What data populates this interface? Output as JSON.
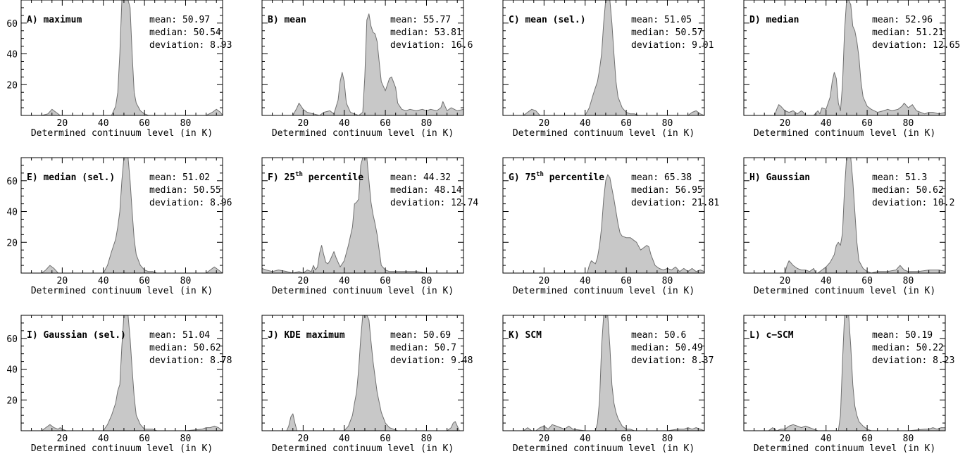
{
  "chart_data": [
    {
      "type": "area",
      "label": "A) maximum",
      "stats": [
        "mean: 50.97",
        "median: 50.54",
        "deviation: 8.93"
      ],
      "xlabel": "Determined continuum level (in K)",
      "xlim": [
        0,
        98
      ],
      "ylim": [
        0,
        75
      ],
      "xticks": [
        "20",
        "40",
        "60",
        "80"
      ],
      "yticks": [
        "20",
        "40",
        "60"
      ],
      "show_yticks": true,
      "x": [
        0,
        10,
        13,
        15,
        17,
        19,
        30,
        44,
        46,
        47,
        48,
        49,
        50,
        51,
        52,
        53,
        54,
        55,
        56,
        58,
        60,
        62,
        70,
        90,
        93,
        95,
        97,
        98
      ],
      "values": [
        0,
        0,
        1,
        4,
        2,
        0,
        0,
        0,
        6,
        15,
        40,
        78,
        78,
        78,
        78,
        70,
        40,
        15,
        8,
        3,
        1,
        0,
        0,
        0,
        2,
        4,
        2,
        0
      ]
    },
    {
      "type": "area",
      "label": "B) mean",
      "stats": [
        "mean: 55.77",
        "median: 53.81",
        "deviation: 16.6"
      ],
      "xlabel": "Determined continuum level (in K)",
      "xlim": [
        0,
        98
      ],
      "ylim": [
        0,
        75
      ],
      "xticks": [
        "20",
        "40",
        "60",
        "80"
      ],
      "yticks": [
        "20",
        "40",
        "60"
      ],
      "show_yticks": false,
      "x": [
        0,
        15,
        17,
        18,
        20,
        22,
        25,
        28,
        30,
        33,
        35,
        37,
        38,
        39,
        40,
        41,
        43,
        45,
        47,
        49,
        50,
        51,
        52,
        53,
        54,
        55,
        56,
        57,
        58,
        60,
        61,
        62,
        63,
        65,
        66,
        68,
        70,
        72,
        75,
        78,
        80,
        82,
        85,
        87,
        88,
        90,
        92,
        95,
        98
      ],
      "values": [
        0,
        0,
        5,
        8,
        4,
        2,
        1,
        0,
        2,
        3,
        1,
        10,
        22,
        28,
        22,
        8,
        2,
        1,
        0,
        2,
        25,
        62,
        66,
        58,
        54,
        53,
        48,
        35,
        22,
        16,
        20,
        24,
        25,
        18,
        8,
        4,
        3,
        4,
        3,
        4,
        3,
        4,
        3,
        5,
        9,
        3,
        5,
        3,
        4
      ]
    },
    {
      "type": "area",
      "label": "C) mean (sel.)",
      "stats": [
        "mean: 51.05",
        "median: 50.57",
        "deviation: 9.01"
      ],
      "xlabel": "Determined continuum level (in K)",
      "xlim": [
        0,
        98
      ],
      "ylim": [
        0,
        75
      ],
      "xticks": [
        "20",
        "40",
        "60",
        "80"
      ],
      "yticks": [
        "20",
        "40",
        "60"
      ],
      "show_yticks": false,
      "x": [
        0,
        10,
        12,
        14,
        16,
        18,
        40,
        42,
        44,
        46,
        47,
        48,
        49,
        50,
        51,
        52,
        53,
        54,
        55,
        56,
        58,
        60,
        62,
        64,
        66,
        80,
        90,
        92,
        94,
        96,
        98
      ],
      "values": [
        0,
        0,
        2,
        4,
        3,
        0,
        0,
        5,
        14,
        22,
        30,
        40,
        60,
        78,
        78,
        78,
        60,
        40,
        22,
        12,
        5,
        2,
        1,
        1,
        0,
        0,
        0,
        2,
        3,
        1,
        0
      ]
    },
    {
      "type": "area",
      "label": "D) median",
      "stats": [
        "mean: 52.96",
        "median: 51.21",
        "deviation: 12.65"
      ],
      "xlabel": "Determined continuum level (in K)",
      "xlim": [
        0,
        98
      ],
      "ylim": [
        0,
        75
      ],
      "xticks": [
        "20",
        "40",
        "60",
        "80"
      ],
      "yticks": [
        "20",
        "40",
        "60"
      ],
      "show_yticks": false,
      "x": [
        0,
        15,
        16,
        17,
        18,
        20,
        22,
        24,
        26,
        28,
        29,
        30,
        32,
        34,
        36,
        37,
        38,
        40,
        42,
        43,
        44,
        45,
        46,
        47,
        48,
        49,
        50,
        51,
        52,
        53,
        54,
        55,
        56,
        57,
        58,
        60,
        62,
        65,
        68,
        70,
        72,
        75,
        77,
        78,
        80,
        82,
        84,
        86,
        88,
        90,
        92,
        95,
        98
      ],
      "values": [
        0,
        0,
        4,
        7,
        6,
        3,
        2,
        3,
        1,
        3,
        2,
        0,
        0,
        0,
        3,
        1,
        5,
        4,
        12,
        22,
        28,
        24,
        8,
        3,
        20,
        55,
        78,
        78,
        72,
        58,
        55,
        48,
        38,
        22,
        12,
        6,
        4,
        2,
        3,
        4,
        3,
        4,
        6,
        8,
        5,
        7,
        3,
        2,
        1,
        2,
        2,
        1,
        2
      ]
    },
    {
      "type": "area",
      "label": "E) median (sel.)",
      "stats": [
        "mean: 51.02",
        "median: 50.55",
        "deviation: 8.96"
      ],
      "xlabel": "Determined continuum level (in K)",
      "xlim": [
        0,
        98
      ],
      "ylim": [
        0,
        75
      ],
      "xticks": [
        "20",
        "40",
        "60",
        "80"
      ],
      "yticks": [
        "20",
        "40",
        "60"
      ],
      "show_yticks": true,
      "x": [
        0,
        10,
        12,
        14,
        16,
        18,
        40,
        42,
        44,
        46,
        47,
        48,
        49,
        50,
        51,
        52,
        53,
        54,
        55,
        56,
        58,
        60,
        62,
        64,
        66,
        80,
        90,
        92,
        94,
        96,
        98
      ],
      "values": [
        0,
        0,
        2,
        5,
        3,
        0,
        0,
        5,
        14,
        22,
        30,
        40,
        60,
        78,
        78,
        78,
        60,
        40,
        22,
        12,
        5,
        2,
        1,
        1,
        0,
        0,
        0,
        2,
        4,
        2,
        0
      ]
    },
    {
      "type": "area",
      "label": "F) 25th percentile",
      "label_main": "F) 25",
      "label_sup": "th",
      "label_rest": " percentile",
      "stats": [
        "mean: 44.32",
        "median: 48.14",
        "deviation: 12.74"
      ],
      "xlabel": "Determined continuum level (in K)",
      "xlim": [
        0,
        98
      ],
      "ylim": [
        0,
        75
      ],
      "xticks": [
        "20",
        "40",
        "60",
        "80"
      ],
      "yticks": [
        "20",
        "40",
        "60"
      ],
      "show_yticks": false,
      "x": [
        0,
        2,
        5,
        8,
        12,
        15,
        18,
        20,
        22,
        24,
        25,
        26,
        27,
        28,
        29,
        30,
        31,
        32,
        33,
        35,
        36,
        38,
        40,
        42,
        44,
        45,
        46,
        47,
        48,
        49,
        50,
        51,
        52,
        53,
        54,
        55,
        56,
        57,
        58,
        60,
        62,
        65,
        70,
        75,
        80
      ],
      "values": [
        3,
        2,
        1,
        2,
        1,
        0,
        1,
        0,
        2,
        1,
        5,
        2,
        4,
        13,
        18,
        12,
        7,
        6,
        8,
        14,
        10,
        4,
        8,
        18,
        30,
        45,
        46,
        48,
        70,
        78,
        78,
        76,
        60,
        46,
        38,
        32,
        25,
        15,
        5,
        2,
        1,
        1,
        1,
        1,
        0
      ]
    },
    {
      "type": "area",
      "label": "G) 75th percentile",
      "label_main": "G) 75",
      "label_sup": "th",
      "label_rest": " percentile",
      "stats": [
        "mean: 65.38",
        "median: 56.95",
        "deviation: 21.81"
      ],
      "xlabel": "Determined continuum level (in K)",
      "xlim": [
        0,
        98
      ],
      "ylim": [
        0,
        75
      ],
      "xticks": [
        "20",
        "40",
        "60",
        "80"
      ],
      "yticks": [
        "20",
        "40",
        "60"
      ],
      "show_yticks": false,
      "x": [
        0,
        41,
        42,
        43,
        44,
        45,
        46,
        47,
        48,
        49,
        50,
        51,
        52,
        53,
        54,
        55,
        56,
        57,
        58,
        60,
        62,
        65,
        67,
        68,
        70,
        71,
        72,
        74,
        76,
        78,
        80,
        82,
        84,
        86,
        88,
        90,
        92,
        94,
        96,
        98
      ],
      "values": [
        0,
        0,
        5,
        8,
        7,
        6,
        10,
        18,
        30,
        48,
        60,
        64,
        62,
        55,
        48,
        40,
        32,
        26,
        24,
        23,
        23,
        20,
        15,
        16,
        18,
        17,
        12,
        5,
        3,
        2,
        3,
        2,
        4,
        1,
        3,
        1,
        3,
        1,
        2,
        1
      ]
    },
    {
      "type": "area",
      "label": "H) Gaussian",
      "stats": [
        "mean: 51.3",
        "median: 50.62",
        "deviation: 10.2"
      ],
      "xlabel": "Determined continuum level (in K)",
      "xlim": [
        0,
        98
      ],
      "ylim": [
        0,
        75
      ],
      "xticks": [
        "20",
        "40",
        "60",
        "80"
      ],
      "yticks": [
        "20",
        "40",
        "60"
      ],
      "show_yticks": false,
      "x": [
        0,
        20,
        21,
        22,
        24,
        26,
        28,
        30,
        32,
        34,
        35,
        36,
        38,
        40,
        42,
        44,
        45,
        46,
        47,
        48,
        49,
        50,
        51,
        52,
        53,
        54,
        55,
        56,
        58,
        60,
        62,
        65,
        70,
        74,
        76,
        78,
        80,
        85,
        90,
        95,
        98
      ],
      "values": [
        0,
        0,
        5,
        8,
        5,
        3,
        2,
        2,
        1,
        3,
        0,
        0,
        2,
        4,
        7,
        12,
        18,
        20,
        18,
        26,
        55,
        78,
        78,
        78,
        60,
        40,
        20,
        8,
        3,
        1,
        0,
        1,
        1,
        2,
        5,
        2,
        1,
        1,
        2,
        2,
        1
      ]
    },
    {
      "type": "area",
      "label": "I) Gaussian (sel.)",
      "stats": [
        "mean: 51.04",
        "median: 50.62",
        "deviation: 8.78"
      ],
      "xlabel": "Determined continuum level (in K)",
      "xlim": [
        0,
        98
      ],
      "ylim": [
        0,
        75
      ],
      "xticks": [
        "20",
        "40",
        "60",
        "80"
      ],
      "yticks": [
        "20",
        "40",
        "60"
      ],
      "show_yticks": true,
      "x": [
        0,
        10,
        12,
        14,
        16,
        18,
        19,
        20,
        22,
        40,
        42,
        44,
        46,
        47,
        48,
        49,
        50,
        51,
        52,
        53,
        54,
        55,
        56,
        58,
        60,
        62,
        64,
        66,
        80,
        88,
        90,
        92,
        94,
        96,
        98
      ],
      "values": [
        0,
        0,
        2,
        4,
        2,
        1,
        2,
        1,
        0,
        0,
        4,
        10,
        18,
        26,
        30,
        55,
        78,
        78,
        78,
        60,
        40,
        22,
        10,
        4,
        1,
        1,
        1,
        0,
        0,
        1,
        2,
        2,
        3,
        2,
        0
      ]
    },
    {
      "type": "area",
      "label": "J) KDE maximum",
      "stats": [
        "mean: 50.69",
        "median: 50.7",
        "deviation: 9.48"
      ],
      "xlabel": "Determined continuum level (in K)",
      "xlim": [
        0,
        98
      ],
      "ylim": [
        0,
        75
      ],
      "xticks": [
        "20",
        "40",
        "60",
        "80"
      ],
      "yticks": [
        "20",
        "40",
        "60"
      ],
      "show_yticks": false,
      "x": [
        0,
        12,
        13,
        14,
        15,
        16,
        17,
        30,
        40,
        42,
        44,
        45,
        46,
        47,
        48,
        49,
        50,
        51,
        52,
        53,
        54,
        55,
        56,
        58,
        60,
        62,
        64,
        66,
        80,
        90,
        92,
        93,
        94,
        95,
        96,
        98
      ],
      "values": [
        0,
        0,
        3,
        9,
        11,
        5,
        0,
        0,
        0,
        3,
        10,
        18,
        25,
        40,
        60,
        78,
        78,
        78,
        72,
        58,
        45,
        35,
        25,
        12,
        5,
        2,
        1,
        0,
        0,
        0,
        2,
        5,
        6,
        3,
        0,
        0
      ]
    },
    {
      "type": "area",
      "label": "K) SCM",
      "stats": [
        "mean: 50.6",
        "median: 50.49",
        "deviation: 8.37"
      ],
      "xlabel": "Determined continuum level (in K)",
      "xlim": [
        0,
        98
      ],
      "ylim": [
        0,
        75
      ],
      "xticks": [
        "20",
        "40",
        "60",
        "80"
      ],
      "yticks": [
        "20",
        "40",
        "60"
      ],
      "show_yticks": false,
      "x": [
        0,
        10,
        12,
        14,
        16,
        18,
        20,
        22,
        24,
        26,
        28,
        30,
        32,
        34,
        40,
        45,
        46,
        47,
        48,
        49,
        50,
        51,
        52,
        53,
        54,
        55,
        56,
        58,
        60,
        62,
        64,
        80,
        85,
        88,
        90,
        92,
        94,
        96,
        98
      ],
      "values": [
        0,
        0,
        2,
        0,
        0,
        2,
        3,
        1,
        4,
        3,
        2,
        1,
        3,
        1,
        0,
        0,
        5,
        20,
        55,
        78,
        78,
        78,
        55,
        30,
        18,
        12,
        8,
        3,
        1,
        1,
        0,
        0,
        1,
        1,
        2,
        1,
        2,
        1,
        0
      ]
    },
    {
      "type": "area",
      "label": "L) c−SCM",
      "stats": [
        "mean: 50.19",
        "median: 50.22",
        "deviation: 8.23"
      ],
      "xlabel": "Determined continuum level (in K)",
      "xlim": [
        0,
        98
      ],
      "ylim": [
        0,
        75
      ],
      "xticks": [
        "20",
        "40",
        "60",
        "80"
      ],
      "yticks": [
        "20",
        "40",
        "60"
      ],
      "show_yticks": false,
      "x": [
        0,
        12,
        14,
        16,
        18,
        20,
        22,
        24,
        26,
        28,
        30,
        32,
        34,
        36,
        40,
        46,
        47,
        48,
        49,
        50,
        51,
        52,
        53,
        54,
        55,
        56,
        58,
        60,
        62,
        70,
        80,
        88,
        90,
        92,
        94,
        96,
        98
      ],
      "values": [
        0,
        0,
        2,
        0,
        1,
        1,
        3,
        4,
        3,
        2,
        3,
        2,
        1,
        0,
        0,
        0,
        10,
        45,
        78,
        78,
        78,
        55,
        30,
        16,
        10,
        6,
        3,
        1,
        0,
        0,
        0,
        1,
        1,
        2,
        1,
        2,
        2
      ]
    }
  ]
}
